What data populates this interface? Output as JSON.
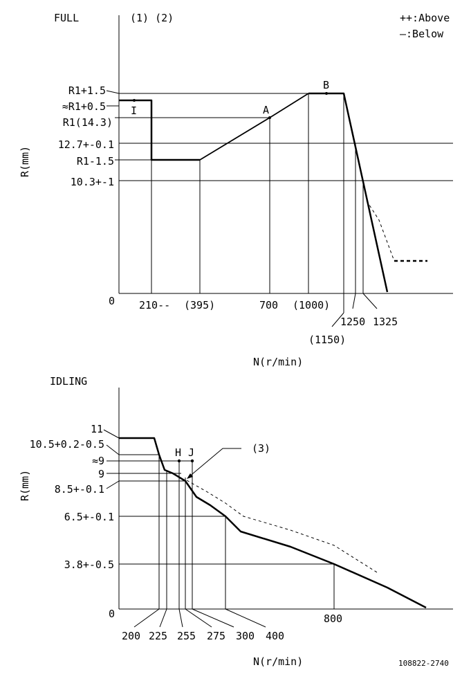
{
  "legend": {
    "above": "++:Above",
    "below": "—:Below"
  },
  "doc_number": "108822-2740",
  "full": {
    "title": "FULL",
    "notes": "(1) (2)",
    "ylabel": "R(mm)",
    "xlabel": "N(r/min)",
    "origin": "0",
    "y_labels": {
      "r1_plus": "R1+1.5",
      "r1_approx": "≈R1+0.5",
      "r1": "R1(14.3)",
      "v127": "12.7+-0.1",
      "r1_minus": "R1-1.5",
      "v103": "10.3+-1"
    },
    "x_labels": {
      "x210": "210--",
      "x395": "(395)",
      "x700": "700",
      "x1000": "(1000)",
      "x1150": "(1150)",
      "x1250": "1250",
      "x1325": "1325"
    },
    "points": {
      "i": "I",
      "a": "A",
      "b": "B"
    }
  },
  "idling": {
    "title": "IDLING",
    "ylabel": "R(mm)",
    "xlabel": "N(r/min)",
    "origin": "0",
    "callout": "(3)",
    "y_labels": {
      "v11": "11",
      "v105": "10.5+0.2-0.5",
      "v9a": "≈9",
      "v9": "9",
      "v85": "8.5+-0.1",
      "v65": "6.5+-0.1",
      "v38": "3.8+-0.5"
    },
    "x_labels": {
      "x200": "200",
      "x225": "225",
      "x255": "255",
      "x275": "275",
      "x300": "300",
      "x400": "400",
      "x800": "800"
    },
    "points": {
      "h": "H",
      "j": "J"
    }
  }
}
